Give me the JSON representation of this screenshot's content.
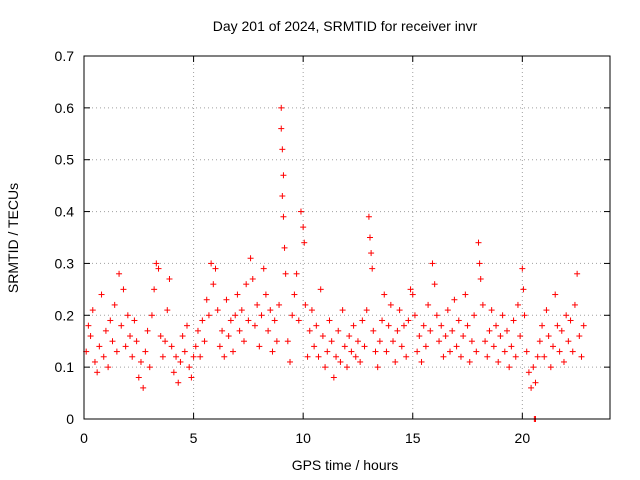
{
  "chart_data": {
    "type": "scatter",
    "title": "Day 201 of 2024, SRMTID for receiver invr",
    "xlabel": "GPS time / hours",
    "ylabel": "SRMTID / TECUs",
    "xlim": [
      0,
      24
    ],
    "ylim": [
      0,
      0.7
    ],
    "xticks": [
      0,
      5,
      10,
      15,
      20
    ],
    "yticks": [
      0,
      0.1,
      0.2,
      0.3,
      0.4,
      0.5,
      0.6,
      0.7
    ],
    "xtick_labels": [
      "0",
      "5",
      "10",
      "15",
      "20"
    ],
    "ytick_labels": [
      "0",
      "0.1",
      "0.2",
      "0.3",
      "0.4",
      "0.5",
      "0.6",
      "0.7"
    ],
    "grid": true,
    "marker": "+",
    "color": "#ff0000",
    "series": [
      {
        "name": "SRMTID",
        "points": [
          [
            0.1,
            0.13
          ],
          [
            0.2,
            0.18
          ],
          [
            0.3,
            0.16
          ],
          [
            0.4,
            0.21
          ],
          [
            0.5,
            0.11
          ],
          [
            0.6,
            0.09
          ],
          [
            0.7,
            0.14
          ],
          [
            0.8,
            0.24
          ],
          [
            0.9,
            0.12
          ],
          [
            1.0,
            0.17
          ],
          [
            1.1,
            0.1
          ],
          [
            1.2,
            0.19
          ],
          [
            1.3,
            0.15
          ],
          [
            1.4,
            0.22
          ],
          [
            1.5,
            0.13
          ],
          [
            1.6,
            0.28
          ],
          [
            1.7,
            0.18
          ],
          [
            1.8,
            0.25
          ],
          [
            1.9,
            0.14
          ],
          [
            2.0,
            0.2
          ],
          [
            2.1,
            0.16
          ],
          [
            2.2,
            0.12
          ],
          [
            2.3,
            0.19
          ],
          [
            2.4,
            0.15
          ],
          [
            2.5,
            0.08
          ],
          [
            2.6,
            0.11
          ],
          [
            2.7,
            0.06
          ],
          [
            2.8,
            0.13
          ],
          [
            2.9,
            0.17
          ],
          [
            3.0,
            0.1
          ],
          [
            3.1,
            0.2
          ],
          [
            3.2,
            0.25
          ],
          [
            3.3,
            0.3
          ],
          [
            3.4,
            0.29
          ],
          [
            3.5,
            0.16
          ],
          [
            3.6,
            0.12
          ],
          [
            3.7,
            0.15
          ],
          [
            3.8,
            0.21
          ],
          [
            3.9,
            0.27
          ],
          [
            4.0,
            0.14
          ],
          [
            4.1,
            0.09
          ],
          [
            4.2,
            0.12
          ],
          [
            4.3,
            0.07
          ],
          [
            4.4,
            0.11
          ],
          [
            4.5,
            0.16
          ],
          [
            4.6,
            0.13
          ],
          [
            4.7,
            0.18
          ],
          [
            4.8,
            0.1
          ],
          [
            4.9,
            0.08
          ],
          [
            5.0,
            0.12
          ],
          [
            5.1,
            0.14
          ],
          [
            5.2,
            0.17
          ],
          [
            5.3,
            0.12
          ],
          [
            5.4,
            0.19
          ],
          [
            5.5,
            0.15
          ],
          [
            5.6,
            0.23
          ],
          [
            5.7,
            0.2
          ],
          [
            5.8,
            0.3
          ],
          [
            5.9,
            0.26
          ],
          [
            6.0,
            0.29
          ],
          [
            6.1,
            0.21
          ],
          [
            6.2,
            0.14
          ],
          [
            6.3,
            0.17
          ],
          [
            6.4,
            0.12
          ],
          [
            6.5,
            0.23
          ],
          [
            6.6,
            0.16
          ],
          [
            6.7,
            0.19
          ],
          [
            6.8,
            0.13
          ],
          [
            6.9,
            0.2
          ],
          [
            7.0,
            0.24
          ],
          [
            7.1,
            0.17
          ],
          [
            7.2,
            0.21
          ],
          [
            7.3,
            0.15
          ],
          [
            7.4,
            0.26
          ],
          [
            7.5,
            0.19
          ],
          [
            7.6,
            0.31
          ],
          [
            7.7,
            0.27
          ],
          [
            7.8,
            0.18
          ],
          [
            7.9,
            0.22
          ],
          [
            8.0,
            0.14
          ],
          [
            8.1,
            0.2
          ],
          [
            8.2,
            0.29
          ],
          [
            8.3,
            0.24
          ],
          [
            8.4,
            0.17
          ],
          [
            8.5,
            0.21
          ],
          [
            8.6,
            0.13
          ],
          [
            8.7,
            0.19
          ],
          [
            8.8,
            0.15
          ],
          [
            8.9,
            0.22
          ],
          [
            9.0,
            0.6
          ],
          [
            9.0,
            0.56
          ],
          [
            9.05,
            0.52
          ],
          [
            9.1,
            0.47
          ],
          [
            9.05,
            0.43
          ],
          [
            9.1,
            0.39
          ],
          [
            9.15,
            0.33
          ],
          [
            9.2,
            0.28
          ],
          [
            9.3,
            0.15
          ],
          [
            9.4,
            0.11
          ],
          [
            9.5,
            0.2
          ],
          [
            9.6,
            0.24
          ],
          [
            9.7,
            0.28
          ],
          [
            9.8,
            0.19
          ],
          [
            9.9,
            0.4
          ],
          [
            10.0,
            0.37
          ],
          [
            10.05,
            0.34
          ],
          [
            10.1,
            0.22
          ],
          [
            10.2,
            0.12
          ],
          [
            10.3,
            0.17
          ],
          [
            10.4,
            0.21
          ],
          [
            10.5,
            0.14
          ],
          [
            10.6,
            0.18
          ],
          [
            10.7,
            0.12
          ],
          [
            10.8,
            0.25
          ],
          [
            10.9,
            0.16
          ],
          [
            11.0,
            0.1
          ],
          [
            11.1,
            0.13
          ],
          [
            11.2,
            0.19
          ],
          [
            11.3,
            0.15
          ],
          [
            11.4,
            0.08
          ],
          [
            11.5,
            0.12
          ],
          [
            11.6,
            0.17
          ],
          [
            11.7,
            0.11
          ],
          [
            11.8,
            0.21
          ],
          [
            11.9,
            0.14
          ],
          [
            12.0,
            0.1
          ],
          [
            12.1,
            0.16
          ],
          [
            12.2,
            0.13
          ],
          [
            12.3,
            0.18
          ],
          [
            12.4,
            0.12
          ],
          [
            12.5,
            0.15
          ],
          [
            12.6,
            0.11
          ],
          [
            12.7,
            0.19
          ],
          [
            12.8,
            0.14
          ],
          [
            12.9,
            0.21
          ],
          [
            13.0,
            0.39
          ],
          [
            13.05,
            0.35
          ],
          [
            13.1,
            0.32
          ],
          [
            13.15,
            0.29
          ],
          [
            13.2,
            0.17
          ],
          [
            13.3,
            0.13
          ],
          [
            13.4,
            0.1
          ],
          [
            13.5,
            0.15
          ],
          [
            13.6,
            0.19
          ],
          [
            13.7,
            0.24
          ],
          [
            13.8,
            0.13
          ],
          [
            13.9,
            0.18
          ],
          [
            14.0,
            0.22
          ],
          [
            14.1,
            0.15
          ],
          [
            14.2,
            0.11
          ],
          [
            14.3,
            0.17
          ],
          [
            14.4,
            0.21
          ],
          [
            14.5,
            0.14
          ],
          [
            14.6,
            0.18
          ],
          [
            14.7,
            0.12
          ],
          [
            14.8,
            0.19
          ],
          [
            14.9,
            0.25
          ],
          [
            15.0,
            0.24
          ],
          [
            15.1,
            0.2
          ],
          [
            15.2,
            0.13
          ],
          [
            15.3,
            0.16
          ],
          [
            15.4,
            0.11
          ],
          [
            15.5,
            0.18
          ],
          [
            15.6,
            0.14
          ],
          [
            15.7,
            0.22
          ],
          [
            15.8,
            0.17
          ],
          [
            15.9,
            0.3
          ],
          [
            16.0,
            0.26
          ],
          [
            16.1,
            0.2
          ],
          [
            16.2,
            0.15
          ],
          [
            16.3,
            0.18
          ],
          [
            16.4,
            0.12
          ],
          [
            16.5,
            0.16
          ],
          [
            16.6,
            0.21
          ],
          [
            16.7,
            0.13
          ],
          [
            16.8,
            0.17
          ],
          [
            16.9,
            0.23
          ],
          [
            17.0,
            0.14
          ],
          [
            17.1,
            0.19
          ],
          [
            17.2,
            0.12
          ],
          [
            17.3,
            0.16
          ],
          [
            17.4,
            0.24
          ],
          [
            17.5,
            0.18
          ],
          [
            17.6,
            0.11
          ],
          [
            17.7,
            0.15
          ],
          [
            17.8,
            0.2
          ],
          [
            17.9,
            0.13
          ],
          [
            18.0,
            0.34
          ],
          [
            18.05,
            0.3
          ],
          [
            18.1,
            0.27
          ],
          [
            18.2,
            0.22
          ],
          [
            18.3,
            0.15
          ],
          [
            18.4,
            0.12
          ],
          [
            18.5,
            0.17
          ],
          [
            18.6,
            0.21
          ],
          [
            18.7,
            0.14
          ],
          [
            18.8,
            0.18
          ],
          [
            18.9,
            0.11
          ],
          [
            19.0,
            0.16
          ],
          [
            19.1,
            0.2
          ],
          [
            19.2,
            0.13
          ],
          [
            19.3,
            0.17
          ],
          [
            19.4,
            0.1
          ],
          [
            19.5,
            0.14
          ],
          [
            19.6,
            0.19
          ],
          [
            19.7,
            0.12
          ],
          [
            19.8,
            0.22
          ],
          [
            19.9,
            0.16
          ],
          [
            20.0,
            0.29
          ],
          [
            20.05,
            0.25
          ],
          [
            20.1,
            0.2
          ],
          [
            20.2,
            0.13
          ],
          [
            20.3,
            0.09
          ],
          [
            20.4,
            0.06
          ],
          [
            20.5,
            0.1
          ],
          [
            20.6,
            0.07
          ],
          [
            20.7,
            0.12
          ],
          [
            20.8,
            0.15
          ],
          [
            20.9,
            0.18
          ],
          [
            21.0,
            0.12
          ],
          [
            21.1,
            0.21
          ],
          [
            21.2,
            0.16
          ],
          [
            21.3,
            0.1
          ],
          [
            21.4,
            0.14
          ],
          [
            21.5,
            0.24
          ],
          [
            21.6,
            0.18
          ],
          [
            21.7,
            0.13
          ],
          [
            21.8,
            0.17
          ],
          [
            21.9,
            0.11
          ],
          [
            22.0,
            0.2
          ],
          [
            22.1,
            0.15
          ],
          [
            22.2,
            0.19
          ],
          [
            22.3,
            0.13
          ],
          [
            22.4,
            0.22
          ],
          [
            22.5,
            0.28
          ],
          [
            22.6,
            0.16
          ],
          [
            22.7,
            0.12
          ],
          [
            22.8,
            0.18
          ],
          [
            20.55,
            0.0
          ],
          [
            20.6,
            0.0
          ]
        ]
      }
    ]
  }
}
